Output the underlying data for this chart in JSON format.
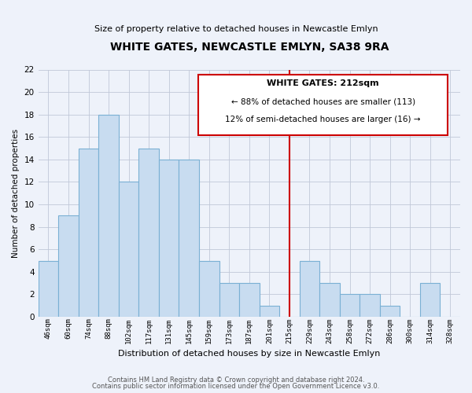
{
  "title": "WHITE GATES, NEWCASTLE EMLYN, SA38 9RA",
  "subtitle": "Size of property relative to detached houses in Newcastle Emlyn",
  "xlabel": "Distribution of detached houses by size in Newcastle Emlyn",
  "ylabel": "Number of detached properties",
  "bar_labels": [
    "46sqm",
    "60sqm",
    "74sqm",
    "88sqm",
    "102sqm",
    "117sqm",
    "131sqm",
    "145sqm",
    "159sqm",
    "173sqm",
    "187sqm",
    "201sqm",
    "215sqm",
    "229sqm",
    "243sqm",
    "258sqm",
    "272sqm",
    "286sqm",
    "300sqm",
    "314sqm",
    "328sqm"
  ],
  "bar_values": [
    5,
    9,
    15,
    18,
    12,
    15,
    14,
    14,
    5,
    3,
    3,
    1,
    0,
    5,
    3,
    2,
    2,
    1,
    0,
    3,
    0
  ],
  "bar_color": "#c8dcf0",
  "bar_edgecolor": "#7ab0d4",
  "grid_color": "#c0c8d8",
  "vline_index": 12,
  "vline_color": "#cc0000",
  "ylim": [
    0,
    22
  ],
  "yticks": [
    0,
    2,
    4,
    6,
    8,
    10,
    12,
    14,
    16,
    18,
    20,
    22
  ],
  "annotation_title": "WHITE GATES: 212sqm",
  "annotation_line1": "← 88% of detached houses are smaller (113)",
  "annotation_line2": "12% of semi-detached houses are larger (16) →",
  "annotation_box_color": "#ffffff",
  "annotation_box_edgecolor": "#cc0000",
  "footer1": "Contains HM Land Registry data © Crown copyright and database right 2024.",
  "footer2": "Contains public sector information licensed under the Open Government Licence v3.0.",
  "background_color": "#eef2fa"
}
